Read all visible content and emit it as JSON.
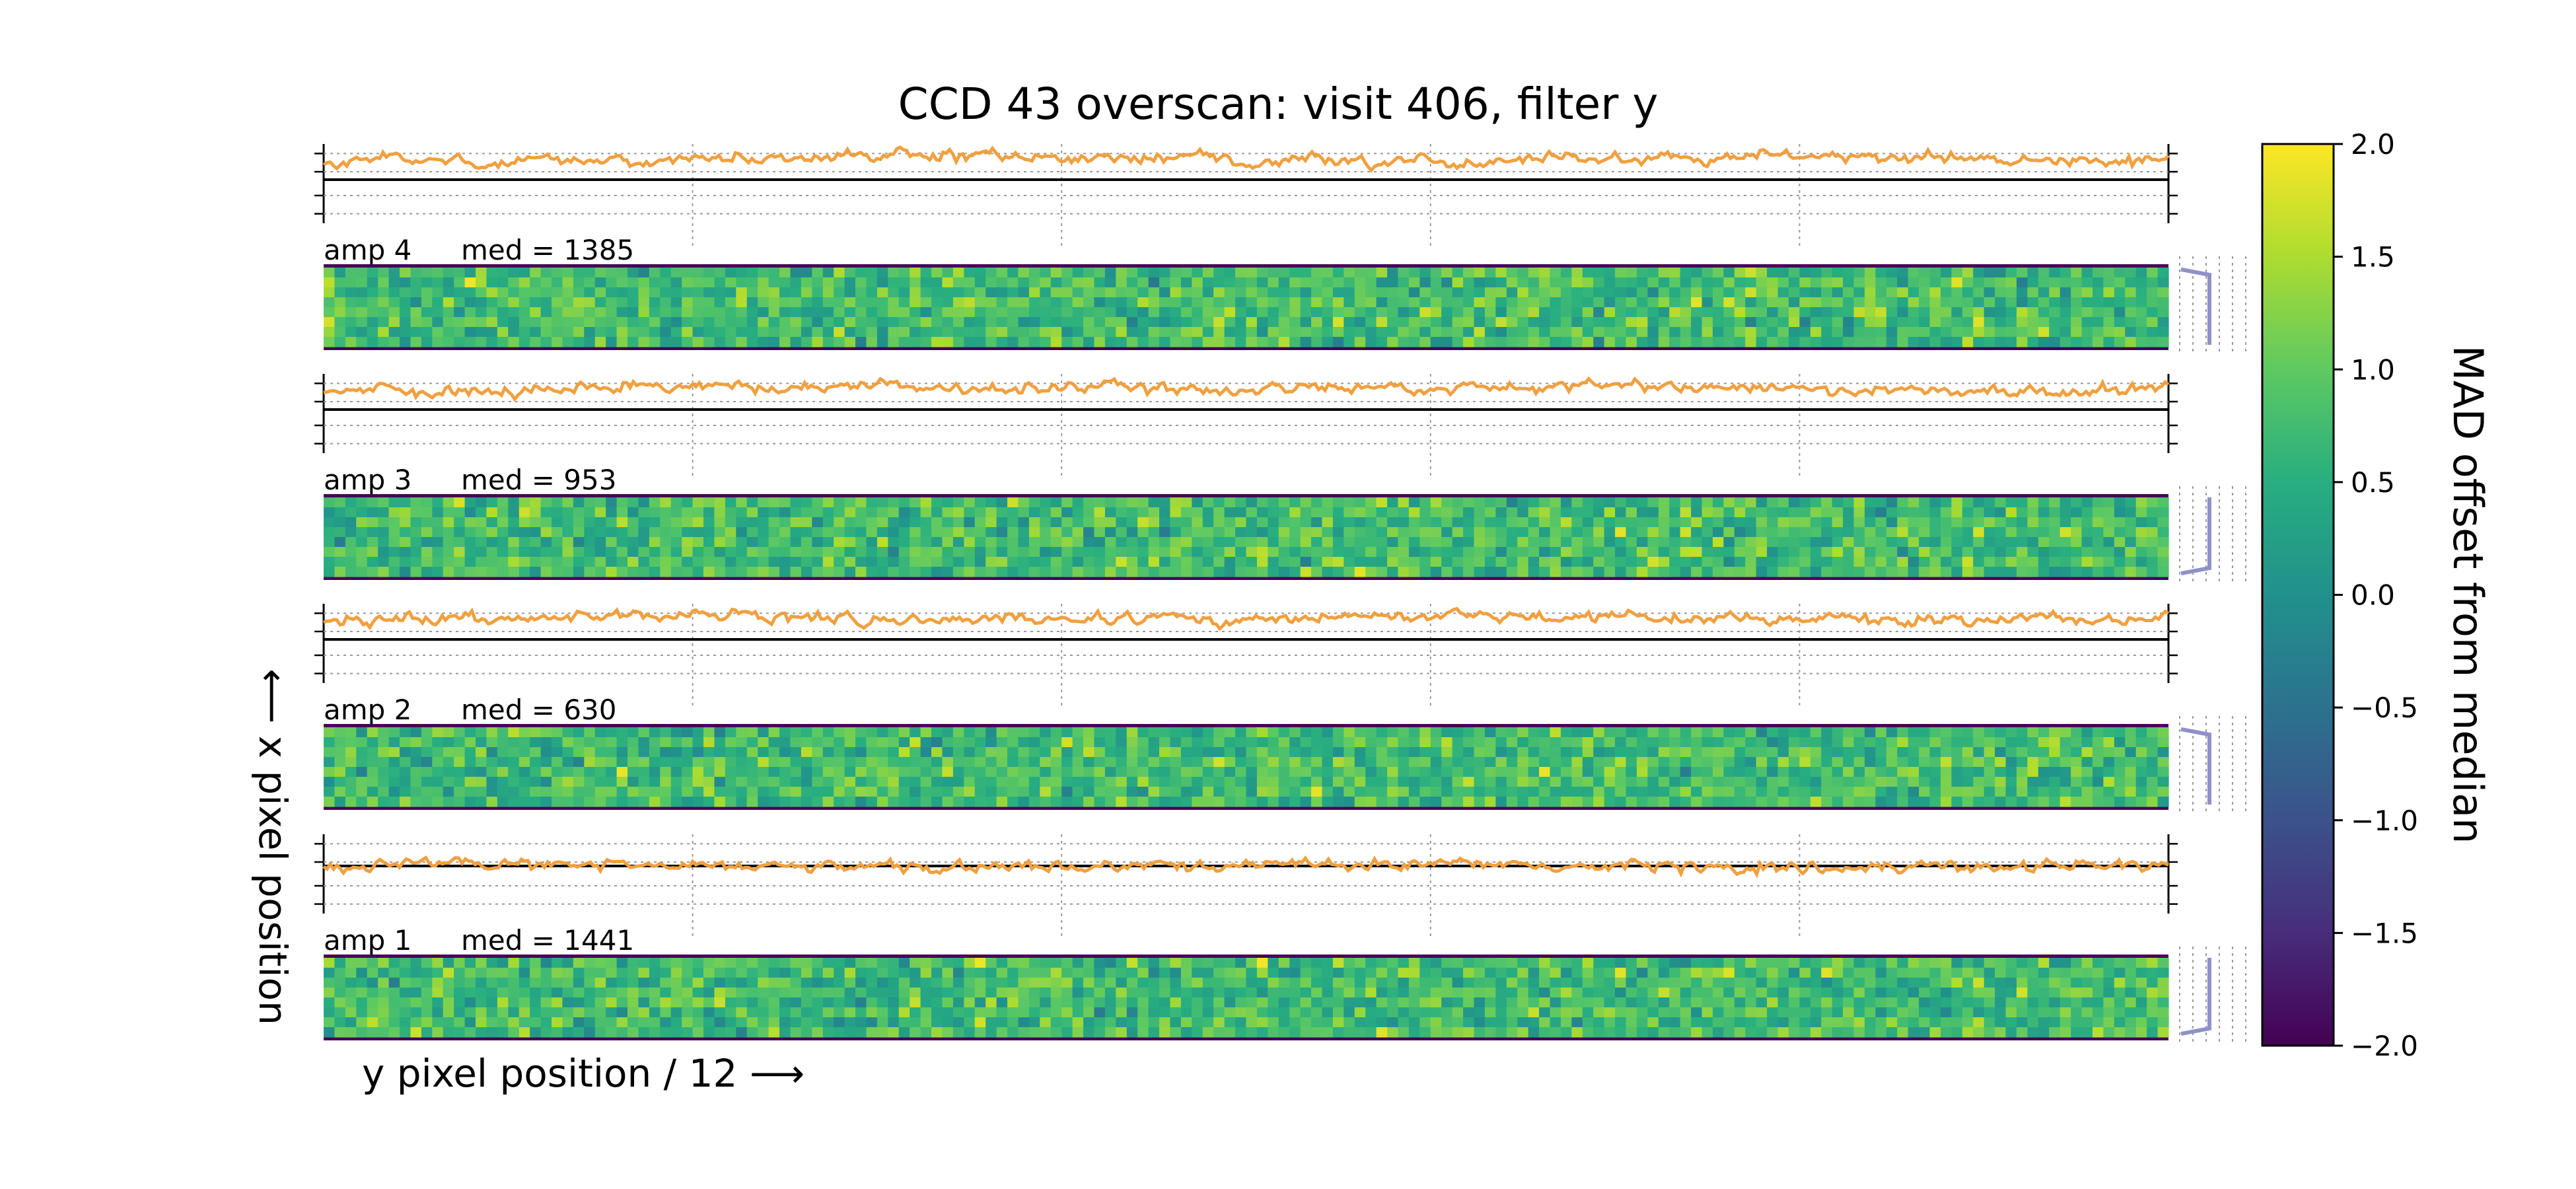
{
  "chart_data": {
    "type": "heatmap",
    "title": "CCD 43 overscan: visit 406, filter y",
    "xlabel": "y pixel position / 12 ⟶",
    "ylabel": "⟵ x pixel position",
    "colorbar": {
      "label": "MAD offset from median",
      "colormap": "viridis",
      "range": [
        -2.0,
        2.0
      ],
      "ticks": [
        2.0,
        1.5,
        1.0,
        0.5,
        0.0,
        -0.5,
        -1.0,
        -1.5,
        -2.0
      ],
      "tick_labels": [
        "2.0",
        "1.5",
        "1.0",
        "0.5",
        "0.0",
        "−0.5",
        "−1.0",
        "−1.5",
        "−2.0"
      ]
    },
    "panels": [
      {
        "amp": "amp 4",
        "amp_label": "amp 4",
        "median_label": "med = 1385",
        "median": 1385
      },
      {
        "amp": "amp 3",
        "amp_label": "amp 3",
        "median_label": "med = 953",
        "median": 953
      },
      {
        "amp": "amp 2",
        "amp_label": "amp 2",
        "median_label": "med = 630",
        "median": 630
      },
      {
        "amp": "amp 1",
        "amp_label": "amp 1",
        "median_label": "med = 1441",
        "median": 1441
      }
    ],
    "heatmap_columns": 170,
    "heatmap_rows": 8,
    "line_color": "#f0a040",
    "profile_color": "#9090c8",
    "grid": "dotted"
  }
}
